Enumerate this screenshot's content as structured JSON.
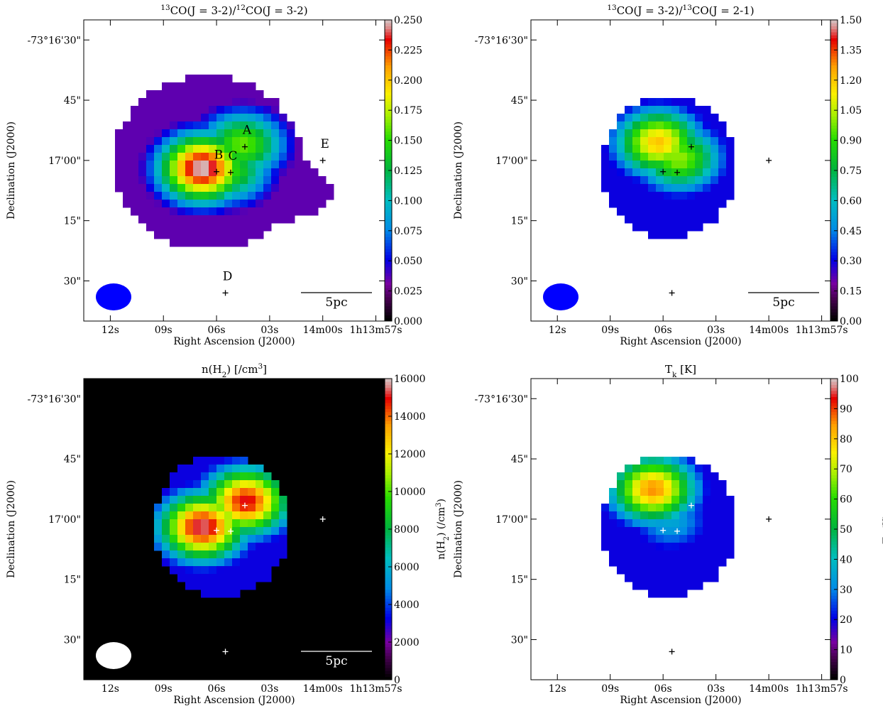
{
  "chart_data": [
    {
      "type": "heatmap",
      "title_parts": [
        {
          "text": "13",
          "sup": true
        },
        {
          "text": "CO(J = 3-2)/"
        },
        {
          "text": "12",
          "sup": true
        },
        {
          "text": "CO(J = 3-2)"
        }
      ],
      "xlabel": "Right Ascension (J2000)",
      "ylabel": "Declination (J2000)",
      "x_ticks": [
        "12s",
        "09s",
        "06s",
        "03s",
        "14m00s",
        "1h13m57s"
      ],
      "y_ticks": [
        "-73°16'30\"",
        "45\"",
        "17'00\"",
        "15\"",
        "30\""
      ],
      "colorbar": {
        "ticks": [
          "0.000",
          "0.025",
          "0.050",
          "0.075",
          "0.100",
          "0.125",
          "0.150",
          "0.175",
          "0.200",
          "0.225",
          "0.250"
        ],
        "range": [
          0,
          0.25
        ],
        "label": ""
      },
      "background": "#ffffff",
      "beam_color": "#0000ff",
      "scalebar_label": "5pc",
      "marker_color": "#000000",
      "sources": [
        {
          "name": "A",
          "ra_s": 4.4,
          "dec": 56.6
        },
        {
          "name": "B",
          "ra_s": 6.0,
          "dec": 62.8
        },
        {
          "name": "C",
          "ra_s": 5.2,
          "dec": 63.0
        },
        {
          "name": "D",
          "ra_s": 5.5,
          "dec": 93.0
        },
        {
          "name": "E",
          "ra_s": 0.0,
          "dec": 60.0
        }
      ],
      "peaks": [
        {
          "ra_s": 6.7,
          "dec": 62.5,
          "value": 0.25
        },
        {
          "ra_s": 4.4,
          "dec": 56.5,
          "value": 0.16
        },
        {
          "ra_s": 5.2,
          "dec": 63.0,
          "value": 0.15
        }
      ],
      "peak_value": 0.25
    },
    {
      "type": "heatmap",
      "title_parts": [
        {
          "text": "13",
          "sup": true
        },
        {
          "text": "CO(J = 3-2)/"
        },
        {
          "text": "13",
          "sup": true
        },
        {
          "text": "CO(J = 2-1)"
        }
      ],
      "xlabel": "Right Ascension (J2000)",
      "ylabel": "Declination (J2000)",
      "x_ticks": [
        "12s",
        "09s",
        "06s",
        "03s",
        "14m00s",
        "1h13m57s"
      ],
      "y_ticks": [
        "-73°16'30\"",
        "45\"",
        "17'00\"",
        "15\"",
        "30\""
      ],
      "colorbar": {
        "ticks": [
          "0.00",
          "0.15",
          "0.30",
          "0.45",
          "0.60",
          "0.75",
          "0.90",
          "1.05",
          "1.20",
          "1.35",
          "1.50"
        ],
        "range": [
          0,
          1.5
        ],
        "label": ""
      },
      "background": "#ffffff",
      "beam_color": "#0000ff",
      "scalebar_label": "5pc",
      "marker_color": "#000000",
      "sources": [
        {
          "name": "",
          "ra_s": 4.4,
          "dec": 56.6
        },
        {
          "name": "",
          "ra_s": 6.0,
          "dec": 62.8
        },
        {
          "name": "",
          "ra_s": 5.2,
          "dec": 63.0
        },
        {
          "name": "",
          "ra_s": 5.5,
          "dec": 93.0
        },
        {
          "name": "",
          "ra_s": 0.0,
          "dec": 60.0
        }
      ],
      "peaks": [
        {
          "ra_s": 6.2,
          "dec": 56.0,
          "value": 1.2
        },
        {
          "ra_s": 5.0,
          "dec": 60.0,
          "value": 1.0
        }
      ],
      "peak_value": 1.2
    },
    {
      "type": "heatmap",
      "title_parts": [
        {
          "text": "n(H"
        },
        {
          "text": "2",
          "sub": true
        },
        {
          "text": ") [/cm"
        },
        {
          "text": "3",
          "sup": true
        },
        {
          "text": "]"
        }
      ],
      "xlabel": "Right Ascension (J2000)",
      "ylabel": "Declination (J2000)",
      "x_ticks": [
        "12s",
        "09s",
        "06s",
        "03s",
        "14m00s",
        "1h13m57s"
      ],
      "y_ticks": [
        "-73°16'30\"",
        "45\"",
        "17'00\"",
        "15\"",
        "30\""
      ],
      "colorbar": {
        "ticks": [
          "0",
          "2000",
          "4000",
          "6000",
          "8000",
          "10000",
          "12000",
          "14000",
          "16000"
        ],
        "range": [
          0,
          16000
        ],
        "label_parts": [
          {
            "text": "n(H"
          },
          {
            "text": "2",
            "sub": true
          },
          {
            "text": ") (/cm"
          },
          {
            "text": "3",
            "sup": true
          },
          {
            "text": ")"
          }
        ]
      },
      "background": "#000000",
      "beam_color": "#ffffff",
      "scalebar_label": "5pc",
      "marker_color": "#ffffff",
      "sources": [
        {
          "name": "",
          "ra_s": 4.4,
          "dec": 56.6
        },
        {
          "name": "",
          "ra_s": 6.0,
          "dec": 62.8
        },
        {
          "name": "",
          "ra_s": 5.2,
          "dec": 63.0
        },
        {
          "name": "",
          "ra_s": 5.5,
          "dec": 93.0
        },
        {
          "name": "",
          "ra_s": 0.0,
          "dec": 60.0
        }
      ],
      "peaks": [
        {
          "ra_s": 6.7,
          "dec": 62.5,
          "value": 15500
        },
        {
          "ra_s": 4.2,
          "dec": 56.0,
          "value": 15000
        }
      ],
      "peak_value": 16000
    },
    {
      "type": "heatmap",
      "title_parts": [
        {
          "text": "T"
        },
        {
          "text": "k",
          "sub": true
        },
        {
          "text": " [K]"
        }
      ],
      "xlabel": "Right Ascension (J2000)",
      "ylabel": "Declination (J2000)",
      "x_ticks": [
        "12s",
        "09s",
        "06s",
        "03s",
        "14m00s",
        "1h13m57s"
      ],
      "y_ticks": [
        "-73°16'30\"",
        "45\"",
        "17'00\"",
        "15\"",
        "30\""
      ],
      "colorbar": {
        "ticks": [
          "0",
          "10",
          "20",
          "30",
          "40",
          "50",
          "60",
          "70",
          "80",
          "90",
          "100"
        ],
        "range": [
          0,
          100
        ],
        "label_parts": [
          {
            "text": "T"
          },
          {
            "text": "k",
            "sub": true
          },
          {
            "text": " (K)"
          }
        ]
      },
      "background": "#ffffff",
      "beam_color": "#ffffff",
      "scalebar_label": "5pc",
      "marker_color": "#ffffff",
      "sources": [
        {
          "name": "",
          "ra_s": 4.4,
          "dec": 56.6
        },
        {
          "name": "",
          "ra_s": 6.0,
          "dec": 62.8
        },
        {
          "name": "",
          "ra_s": 5.2,
          "dec": 63.0
        },
        {
          "name": "",
          "ra_s": 5.5,
          "dec": 93.0
        },
        {
          "name": "",
          "ra_s": 0.0,
          "dec": 60.0
        }
      ],
      "peaks": [
        {
          "ra_s": 6.5,
          "dec": 53.0,
          "value": 85
        },
        {
          "ra_s": 5.5,
          "dec": 61.0,
          "value": 35
        }
      ],
      "peak_value": 85
    }
  ]
}
